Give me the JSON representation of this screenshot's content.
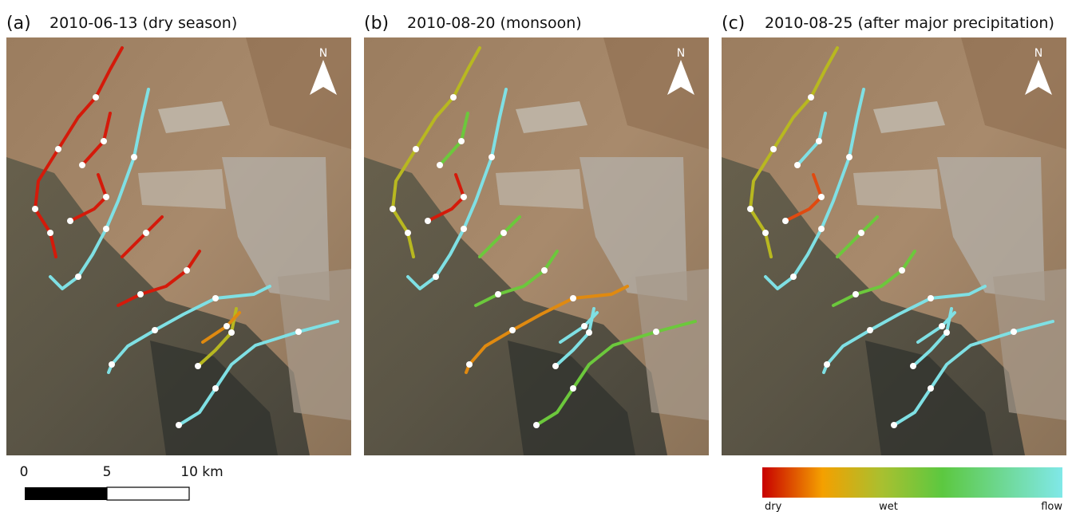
{
  "panels": [
    {
      "label": "(a)",
      "title": "2010-06-13 (dry season)",
      "north": "N"
    },
    {
      "label": "(b)",
      "title": "2010-08-20 (monsoon)",
      "north": "N"
    },
    {
      "label": "(c)",
      "title": "2010-08-25 (after major precipitation)",
      "north": "N"
    }
  ],
  "scale_bar": {
    "labels": [
      "0",
      "5",
      "10 km"
    ]
  },
  "colorbar": {
    "labels": [
      "dry",
      "wet",
      "flow"
    ]
  }
}
